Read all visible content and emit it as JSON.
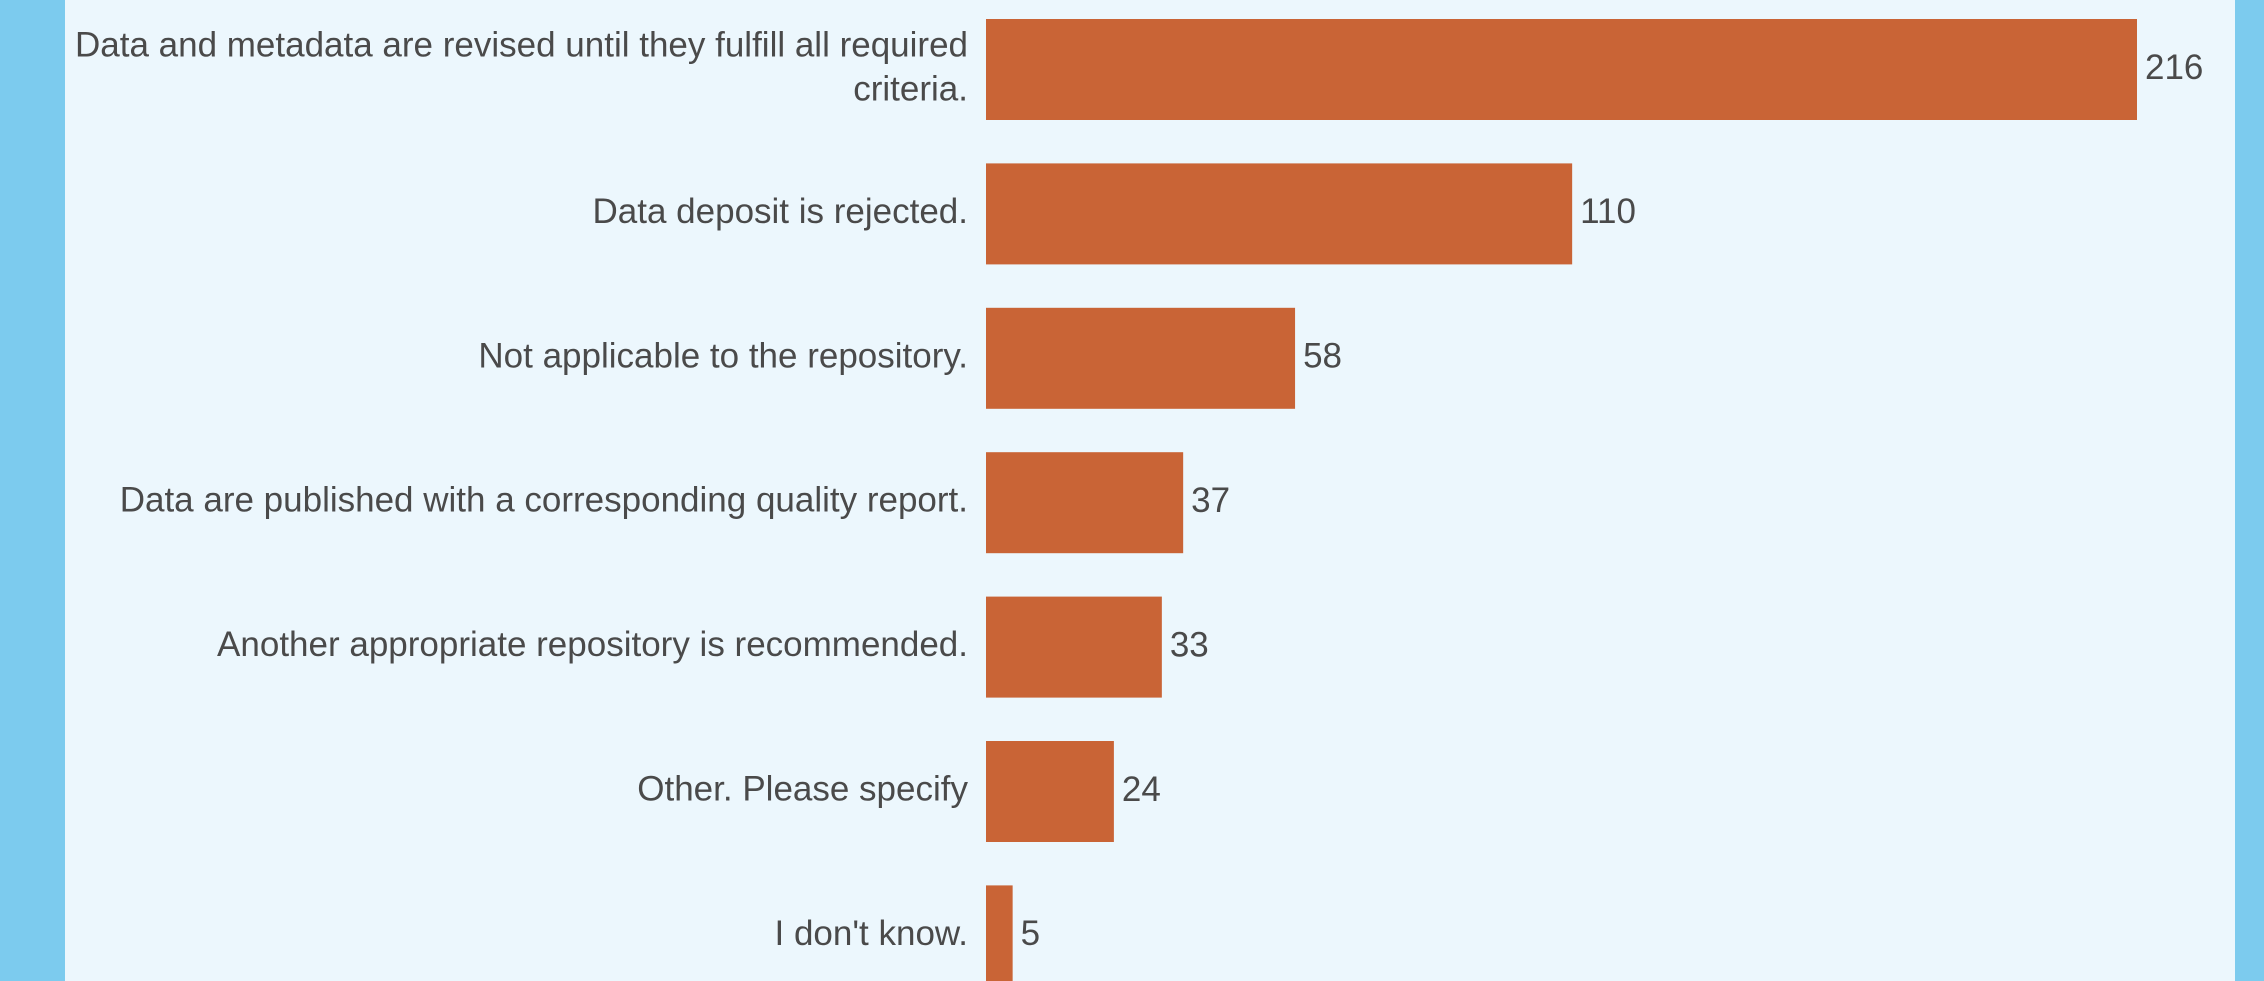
{
  "chart_data": {
    "type": "bar",
    "orientation": "horizontal",
    "categories": [
      "Data and metadata are revised until they fulfill all required criteria.",
      "Data deposit is rejected.",
      "Not applicable to the repository.",
      "Data are published with a corresponding quality report.",
      "Another appropriate repository is recommended.",
      "Other. Please specify",
      "I don't know."
    ],
    "values": [
      216,
      110,
      58,
      37,
      33,
      24,
      5
    ],
    "color": "#c96436"
  }
}
